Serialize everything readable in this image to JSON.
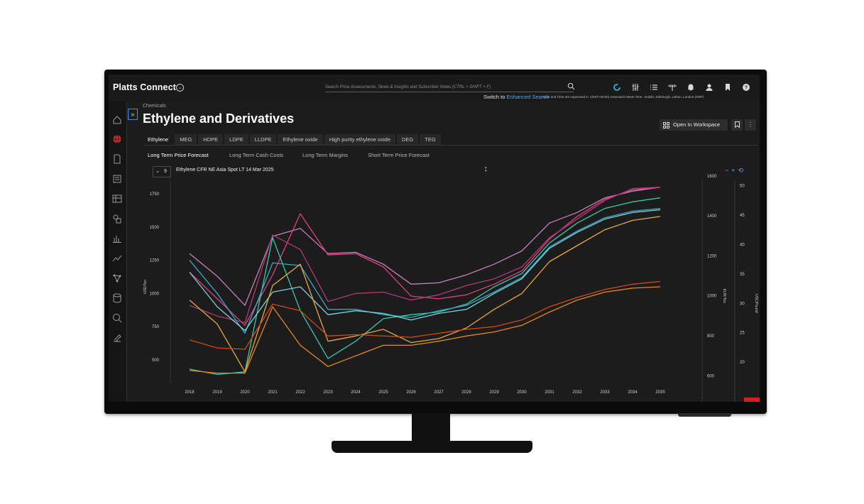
{
  "app": {
    "brand": "Platts Connect",
    "search_placeholder": "Search Price Assessments, News & Insights and Subscriber Notes (CTRL + SHIFT + F)",
    "switch_prefix": "Switch to",
    "switch_link": "Enhanced Search",
    "timezone_note": "Date and Time are expressed in: (GMT+00:00) Greenwich Mean Time : Dublin, Edinburgh, Lisbon, London (GMT)"
  },
  "page": {
    "breadcrumb": "Chemicals",
    "title": "Ethylene and Derivatives",
    "open_workspace": "Open In Workspace",
    "tabs": [
      "Ethylene",
      "MEG",
      "HDPE",
      "LDPE",
      "LLDPE",
      "Ethylene oxide",
      "High purity ethylene oxide",
      "DEG",
      "TEG"
    ],
    "active_tab": "Ethylene",
    "subtabs": [
      "Long Term Price Forecast",
      "Long Term Cash Costs",
      "Long Term Margins",
      "Short Term Price Forecast"
    ],
    "active_subtab": "Long Term Price Forecast",
    "selector_count": "9",
    "series_selected": "Ethylene CFR NE Asia Spot LT 14 Mar 2025"
  },
  "colors": {
    "accent": "#4aa8ff",
    "background": "#1c1c1c",
    "alert": "#d21f1f"
  },
  "chart_data": {
    "type": "line",
    "x": [
      "2018",
      "2019",
      "2020",
      "2021",
      "2022",
      "2023",
      "2024",
      "2025",
      "2026",
      "2027",
      "2028",
      "2029",
      "2030",
      "2031",
      "2032",
      "2033",
      "2034",
      "2035"
    ],
    "left_axis": {
      "label": "USD/Ton",
      "ticks": [
        500,
        750,
        1000,
        1250,
        1500,
        1750
      ],
      "ylim": [
        350,
        1900
      ]
    },
    "right_axis_1": {
      "label": "EUR/Ton",
      "ticks": [
        600,
        800,
        1000,
        1200,
        1400,
        1600
      ],
      "ylim": [
        580,
        1610
      ]
    },
    "right_axis_2": {
      "label": "USC/Pound",
      "ticks": [
        20,
        25,
        30,
        35,
        40,
        45,
        50
      ],
      "ylim": [
        17,
        52
      ]
    },
    "grid": false,
    "series": [
      {
        "color": "#c880c0",
        "values": [
          1300,
          1130,
          910,
          1430,
          1490,
          1300,
          1310,
          1220,
          1070,
          1080,
          1140,
          1220,
          1320,
          1530,
          1610,
          1720,
          1770,
          1800
        ]
      },
      {
        "color": "#e0407a",
        "values": [
          1160,
          960,
          760,
          1140,
          1600,
          1290,
          1300,
          1200,
          980,
          960,
          990,
          1070,
          1170,
          1410,
          1580,
          1710,
          1780,
          1800
        ]
      },
      {
        "color": "#b03a78",
        "values": [
          910,
          830,
          780,
          1440,
          1330,
          940,
          1000,
          1010,
          950,
          990,
          1060,
          1110,
          1200,
          1420,
          1560,
          1700,
          1790,
          1800
        ]
      },
      {
        "color": "#38c8a8",
        "values": [
          430,
          390,
          410,
          1420,
          870,
          510,
          640,
          810,
          840,
          860,
          920,
          1050,
          1150,
          1380,
          1530,
          1640,
          1690,
          1720
        ]
      },
      {
        "color": "#3aa8c8",
        "values": [
          1250,
          1000,
          700,
          1230,
          1210,
          880,
          880,
          840,
          820,
          870,
          910,
          1010,
          1120,
          1350,
          1470,
          1570,
          1620,
          1640
        ]
      },
      {
        "color": "#7fd0d8",
        "values": [
          1160,
          900,
          720,
          1010,
          1050,
          840,
          870,
          850,
          800,
          850,
          880,
          1000,
          1110,
          1340,
          1460,
          1560,
          1610,
          1630
        ]
      },
      {
        "color": "#e8a840",
        "values": [
          950,
          770,
          410,
          1060,
          1220,
          640,
          680,
          730,
          630,
          660,
          740,
          880,
          1000,
          1240,
          1360,
          1480,
          1550,
          1580
        ]
      },
      {
        "color": "#d04a10",
        "values": [
          650,
          590,
          580,
          920,
          870,
          680,
          690,
          680,
          670,
          700,
          730,
          750,
          800,
          900,
          970,
          1030,
          1070,
          1090
        ]
      },
      {
        "color": "#e08820",
        "values": [
          420,
          400,
          400,
          900,
          610,
          450,
          530,
          610,
          610,
          640,
          680,
          710,
          760,
          860,
          950,
          1010,
          1040,
          1050
        ]
      }
    ]
  }
}
